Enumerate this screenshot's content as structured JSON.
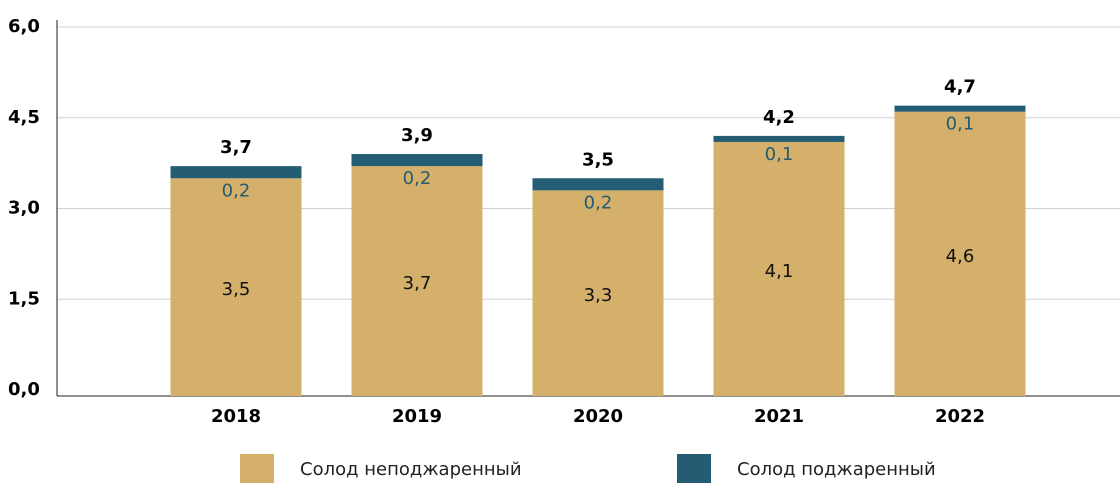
{
  "chart_data": {
    "type": "stacked_bar",
    "categories": [
      "2018",
      "2019",
      "2020",
      "2021",
      "2022"
    ],
    "series": [
      {
        "name": "Солод неподжаренный",
        "color": "#d4b06a",
        "values": [
          3.5,
          3.7,
          3.3,
          4.1,
          4.6
        ],
        "value_labels": [
          "3,5",
          "3,7",
          "3,3",
          "4,1",
          "4,6"
        ]
      },
      {
        "name": "Солод поджаренный",
        "color": "#245c74",
        "values": [
          0.2,
          0.2,
          0.2,
          0.1,
          0.1
        ],
        "value_labels": [
          "0,2",
          "0,2",
          "0,2",
          "0,1",
          "0,1"
        ]
      }
    ],
    "totals": [
      3.7,
      3.9,
      3.5,
      4.2,
      4.7
    ],
    "total_labels": [
      "3,7",
      "3,9",
      "3,5",
      "4,2",
      "4,7"
    ],
    "ylim": [
      0,
      6
    ],
    "yticks": [
      {
        "value": 0,
        "label": "0,0"
      },
      {
        "value": 1.5,
        "label": "1,5"
      },
      {
        "value": 3,
        "label": "3,0"
      },
      {
        "value": 4.5,
        "label": "4,5"
      },
      {
        "value": 6,
        "label": "6,0"
      }
    ],
    "grid": true
  }
}
